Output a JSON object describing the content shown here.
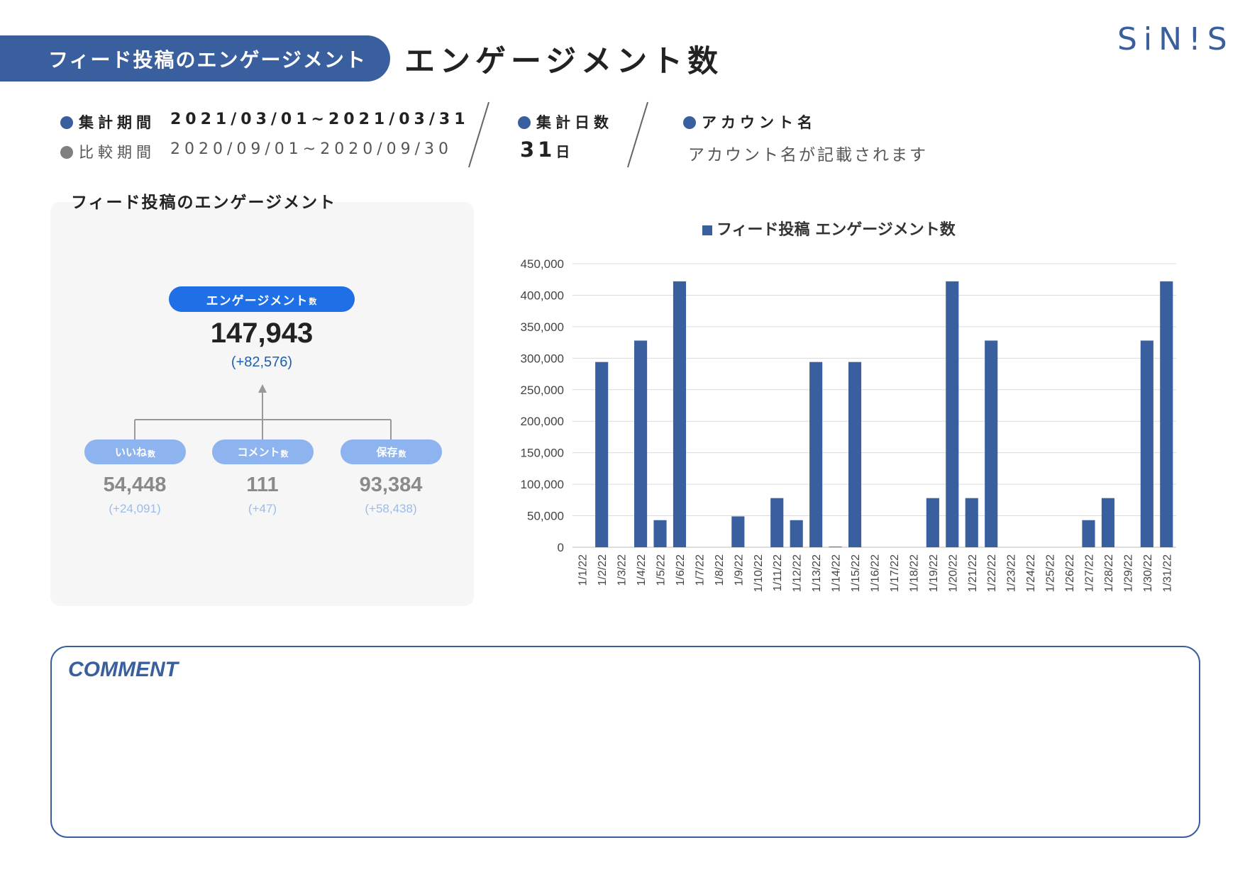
{
  "header": {
    "section_tag": "フィード投稿のエンゲージメント",
    "title": "エンゲージメント数",
    "brand": "SiN!S"
  },
  "meta": {
    "period_label": "集計期間",
    "period_value": "2021/03/01~2021/03/31",
    "compare_label": "比較期間",
    "compare_value": "2020/09/01~2020/09/30",
    "days_label": "集計日数",
    "days_value": "31",
    "days_unit": "日",
    "account_label": "アカウント名",
    "account_value": "アカウント名が記載されます"
  },
  "panel": {
    "heading": "フィード投稿のエンゲージメント",
    "total_label": "エンゲージメント",
    "total_label_suffix": "数",
    "total_value": "147,943",
    "total_diff": "(+82,576)",
    "items": [
      {
        "label": "いいね",
        "suffix": "数",
        "value": "54,448",
        "diff": "(+24,091)"
      },
      {
        "label": "コメント",
        "suffix": "数",
        "value": "111",
        "diff": "(+47)"
      },
      {
        "label": "保存",
        "suffix": "数",
        "value": "93,384",
        "diff": "(+58,438)"
      }
    ]
  },
  "comment": {
    "title": "COMMENT"
  },
  "colors": {
    "brand_blue": "#3a5f9e",
    "pill_blue": "#1f6fe6",
    "sub_pill_blue": "#8db4ee"
  },
  "chart_data": {
    "type": "bar",
    "title": "",
    "legend": [
      {
        "name": "フィード投稿 エンゲージメント数",
        "color": "#3a5f9e"
      }
    ],
    "legend_position": "top",
    "ylim": [
      0,
      450000
    ],
    "yticks": [
      "0",
      "50,000",
      "100,000",
      "150,000",
      "200,000",
      "250,000",
      "300,000",
      "350,000",
      "400,000",
      "450,000"
    ],
    "grid": true,
    "categories": [
      "1/1/22",
      "1/2/22",
      "1/3/22",
      "1/4/22",
      "1/5/22",
      "1/6/22",
      "1/7/22",
      "1/8/22",
      "1/9/22",
      "1/10/22",
      "1/11/22",
      "1/12/22",
      "1/13/22",
      "1/14/22",
      "1/15/22",
      "1/16/22",
      "1/17/22",
      "1/18/22",
      "1/19/22",
      "1/20/22",
      "1/21/22",
      "1/22/22",
      "1/23/22",
      "1/24/22",
      "1/25/22",
      "1/26/22",
      "1/27/22",
      "1/28/22",
      "1/29/22",
      "1/30/22",
      "1/31/22"
    ],
    "series": [
      {
        "name": "フィード投稿 エンゲージメント数",
        "values": [
          0,
          294000,
          0,
          328000,
          43000,
          422000,
          0,
          0,
          49000,
          0,
          78000,
          43000,
          294000,
          1000,
          294000,
          0,
          0,
          0,
          78000,
          422000,
          78000,
          328000,
          0,
          0,
          0,
          0,
          43000,
          78000,
          0,
          328000,
          422000
        ]
      }
    ]
  }
}
